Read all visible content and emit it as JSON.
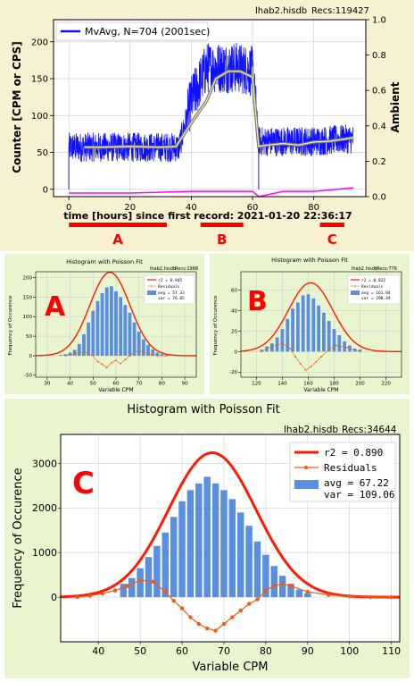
{
  "colors": {
    "top_bg": "#f7f1d2",
    "green_bg": "#e8f5cf",
    "blue_trace": "#1010ff",
    "magenta": "#ff00ff",
    "bar_blue": "#5a8fe0",
    "fit_red": "#ff1a00",
    "resid_orange": "#f05a14",
    "marker_red": "#ff0000"
  },
  "top_chart": {
    "file_label": "lhab2.hisdb",
    "recs_label": "Recs:119427",
    "legend": "MvAvg, N=704 (2001sec)",
    "ylabel_left": "Counter  [CPM or CPS]",
    "ylabel_right": "Ambient",
    "xlabel": "time [hours] since first record: 2021-01-20 22:36:17",
    "xticks": [
      "0",
      "20",
      "40",
      "60",
      "80"
    ],
    "yticks_left": [
      "0",
      "50",
      "100",
      "150",
      "200"
    ],
    "yticks_right": [
      "0.0",
      "0.2",
      "0.4",
      "0.6",
      "0.8",
      "1.0"
    ],
    "markers": [
      {
        "label": "A",
        "x_from": 0,
        "x_to": 32
      },
      {
        "label": "B",
        "x_from": 43,
        "x_to": 57
      },
      {
        "label": "C",
        "x_from": 82,
        "x_to": 90
      }
    ]
  },
  "hist_a": {
    "title": "Histogram with Poisson Fit",
    "file_label": "lhab2.hisdb",
    "recs_label": "Recs:1968",
    "big_letter": "A",
    "xlabel": "Variable CPM",
    "ylabel": "Frequency of Occurence",
    "xticks": [
      "30",
      "40",
      "50",
      "60",
      "70",
      "80",
      "90"
    ],
    "yticks": [
      "-50",
      "0",
      "50",
      "100",
      "150",
      "200"
    ],
    "legend_r2": "r2   = 0.945",
    "legend_resid": "Residuals",
    "legend_avg": "avg = 57.33",
    "legend_var": "var = 76.05"
  },
  "hist_b": {
    "title": "Histogram with Poisson Fit",
    "file_label": "lhab2.hisdb",
    "recs_label": "Recs:776",
    "big_letter": "B",
    "xlabel": "Variable CPM",
    "ylabel": "Frequency of Occurence",
    "xticks": [
      "120",
      "140",
      "160",
      "180",
      "200",
      "220"
    ],
    "yticks": [
      "-20",
      "0",
      "20",
      "40",
      "60"
    ],
    "legend_r2": "r2   = 0.822",
    "legend_resid": "Residuals",
    "legend_avg": "avg = 161.84",
    "legend_var": "var = 290.44"
  },
  "hist_c": {
    "title": "Histogram with Poisson Fit",
    "file_label": "lhab2.hisdb",
    "recs_label": "Recs:34644",
    "big_letter": "C",
    "xlabel": "Variable CPM",
    "ylabel": "Frequency of Occurence",
    "xticks": [
      "40",
      "50",
      "60",
      "70",
      "80",
      "90",
      "100",
      "110"
    ],
    "yticks": [
      "0",
      "1000",
      "2000",
      "3000"
    ],
    "legend_r2": "r2   = 0.890",
    "legend_resid": "Residuals",
    "legend_avg": "avg = 67.22",
    "legend_var": "var = 109.06"
  },
  "chart_data": [
    {
      "type": "line",
      "title": "",
      "xlabel": "time [hours] since first record: 2021-01-20 22:36:17",
      "ylabel": "Counter  [CPM or CPS]",
      "xlim": [
        -5,
        97
      ],
      "ylim": [
        -10,
        230
      ],
      "y2lim": [
        0.0,
        1.0
      ],
      "grid": true,
      "legend_placement": "top-left",
      "series": [
        {
          "name": "MvAvg, N=704 (2001sec)",
          "x": [
            5,
            10,
            20,
            30,
            35,
            40,
            45,
            48,
            52,
            56,
            60,
            62,
            65,
            70,
            75,
            80,
            85,
            90,
            93
          ],
          "y": [
            57,
            57,
            58,
            57,
            58,
            90,
            120,
            150,
            160,
            160,
            152,
            58,
            60,
            62,
            60,
            64,
            65,
            68,
            70
          ]
        },
        {
          "x": [
            0,
            10,
            20,
            30,
            36,
            40,
            45,
            50,
            55,
            60,
            62,
            70,
            80,
            90,
            93
          ],
          "y": [
            57,
            57,
            57,
            57,
            57,
            120,
            165,
            165,
            165,
            160,
            65,
            65,
            65,
            68,
            68
          ]
        },
        {
          "x": [
            0,
            20,
            40,
            55,
            60,
            62,
            70,
            80,
            93
          ],
          "y": [
            0.02,
            0.02,
            0.03,
            0.03,
            0.03,
            0.0,
            0.03,
            0.03,
            0.05
          ]
        }
      ]
    },
    {
      "type": "bar",
      "title": "Histogram with Poisson Fit",
      "xlabel": "Variable CPM",
      "ylabel": "Frequency of Occurence",
      "xlim": [
        25,
        95
      ],
      "ylim": [
        -55,
        215
      ],
      "avg": 57.33,
      "var": 76.05,
      "r2": 0.945,
      "bar_width": 1.5,
      "x": [
        36,
        38,
        40,
        42,
        44,
        46,
        48,
        50,
        52,
        54,
        56,
        58,
        60,
        62,
        64,
        66,
        68,
        70,
        72,
        74,
        76,
        78,
        80,
        82
      ],
      "values": [
        2,
        4,
        8,
        15,
        30,
        55,
        85,
        115,
        140,
        160,
        175,
        178,
        165,
        150,
        130,
        110,
        85,
        62,
        42,
        28,
        16,
        8,
        4,
        2
      ],
      "residuals_x": [
        38,
        42,
        46,
        48,
        50,
        52,
        54,
        56,
        58,
        60,
        62,
        64,
        66,
        68,
        70,
        74,
        78,
        82
      ],
      "residuals": [
        0,
        5,
        10,
        5,
        0,
        -15,
        -22,
        -30,
        -18,
        -12,
        -20,
        -10,
        0,
        10,
        12,
        5,
        0,
        0
      ]
    },
    {
      "type": "bar",
      "title": "Histogram with Poisson Fit",
      "xlabel": "Variable CPM",
      "ylabel": "Frequency of Occurence",
      "xlim": [
        108,
        232
      ],
      "ylim": [
        -25,
        78
      ],
      "avg": 161.84,
      "var": 290.44,
      "r2": 0.822,
      "bar_width": 2.6,
      "x": [
        124,
        128,
        132,
        136,
        140,
        144,
        148,
        152,
        156,
        160,
        164,
        168,
        172,
        176,
        180,
        184,
        188,
        192,
        196,
        200
      ],
      "values": [
        2,
        5,
        8,
        14,
        22,
        32,
        42,
        48,
        55,
        56,
        52,
        45,
        38,
        30,
        22,
        16,
        10,
        6,
        3,
        2
      ],
      "residuals_x": [
        124,
        132,
        140,
        146,
        150,
        154,
        158,
        162,
        166,
        170,
        176,
        182,
        190,
        200
      ],
      "residuals": [
        0,
        5,
        8,
        3,
        -5,
        -12,
        -18,
        -15,
        -10,
        -5,
        2,
        6,
        4,
        0
      ]
    },
    {
      "type": "bar",
      "title": "Histogram with Poisson Fit",
      "xlabel": "Variable CPM",
      "ylabel": "Frequency of Occurence",
      "xlim": [
        31,
        112
      ],
      "ylim": [
        -1000,
        3650
      ],
      "avg": 67.22,
      "var": 109.06,
      "r2": 0.89,
      "bar_width": 1.6,
      "x": [
        46,
        48,
        50,
        52,
        54,
        56,
        58,
        60,
        62,
        64,
        66,
        68,
        70,
        72,
        74,
        76,
        78,
        80,
        82,
        84,
        86,
        88,
        90
      ],
      "values": [
        300,
        430,
        650,
        900,
        1150,
        1450,
        1800,
        2150,
        2400,
        2550,
        2700,
        2550,
        2400,
        2200,
        1900,
        1600,
        1250,
        950,
        700,
        480,
        300,
        170,
        90
      ],
      "residuals_x": [
        35,
        38,
        41,
        44,
        47,
        50,
        53,
        56,
        58,
        60,
        62,
        64,
        66,
        68,
        70,
        72,
        74,
        76,
        78,
        80,
        82,
        84,
        86,
        90,
        95,
        100,
        105,
        110
      ],
      "residuals": [
        0,
        30,
        80,
        150,
        250,
        380,
        350,
        120,
        -80,
        -250,
        -450,
        -600,
        -700,
        -750,
        -600,
        -450,
        -300,
        -150,
        -50,
        150,
        250,
        300,
        250,
        120,
        50,
        20,
        0,
        0
      ]
    }
  ]
}
